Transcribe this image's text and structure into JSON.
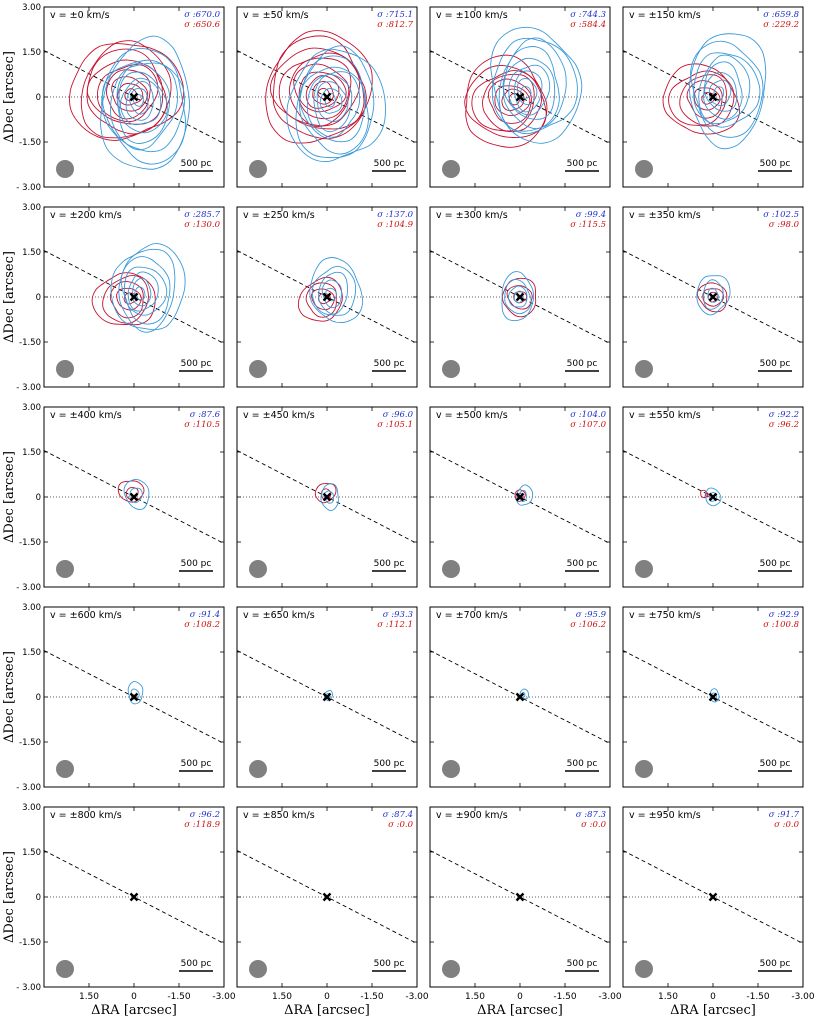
{
  "figure": {
    "xlabel": "ΔRA [arcsec]",
    "ylabel": "ΔDec [arcsec]",
    "scalebar_label": "500 pc",
    "sigma_prefix": "σ :",
    "velocity_prefix": "v = ±",
    "velocity_unit": " km/s",
    "colors": {
      "blue": "#3a9ad9",
      "red": "#c8102e",
      "beam": "#808080"
    }
  },
  "chart_data": {
    "type": "contour-grid",
    "rows": 5,
    "cols": 4,
    "x_ticks": [
      "1.50",
      "0",
      "-1.50",
      "-3.00"
    ],
    "x_tick_values": [
      1.5,
      0,
      -1.5,
      -3.0
    ],
    "y_ticks": [
      "3.00",
      "1.50",
      "0",
      "-1.50",
      "- 3.00"
    ],
    "y_tick_values": [
      3.0,
      1.5,
      0,
      -1.5,
      -3.0
    ],
    "xlim": [
      3.0,
      -3.0
    ],
    "ylim": [
      -3.0,
      3.0
    ],
    "panels": [
      {
        "velocity": 0,
        "sigma_blue": "670.0",
        "sigma_red": "650.6",
        "blue_size": 3.0,
        "red_size": 2.9,
        "blue_dx": -0.4,
        "blue_dy": -0.3,
        "red_dx": 0.3,
        "red_dy": 0.2
      },
      {
        "velocity": 50,
        "sigma_blue": "715.1",
        "sigma_red": "812.7",
        "blue_size": 2.9,
        "red_size": 3.0,
        "blue_dx": -0.3,
        "blue_dy": -0.3,
        "red_dx": 0.3,
        "red_dy": 0.3
      },
      {
        "velocity": 100,
        "sigma_blue": "744.3",
        "sigma_red": "584.4",
        "blue_size": 2.8,
        "red_size": 2.4,
        "blue_dx": -0.5,
        "blue_dy": 0.4,
        "red_dx": 0.5,
        "red_dy": -0.2
      },
      {
        "velocity": 150,
        "sigma_blue": "659.8",
        "sigma_red": "229.2",
        "blue_size": 2.6,
        "red_size": 2.0,
        "blue_dx": -0.5,
        "blue_dy": 0.3,
        "red_dx": 0.4,
        "red_dy": -0.1
      },
      {
        "velocity": 200,
        "sigma_blue": "285.7",
        "sigma_red": "130.0",
        "blue_size": 2.2,
        "red_size": 1.6,
        "blue_dx": -0.5,
        "blue_dy": 0.3,
        "red_dx": 0.3,
        "red_dy": -0.1
      },
      {
        "velocity": 250,
        "sigma_blue": "137.0",
        "sigma_red": "104.9",
        "blue_size": 1.6,
        "red_size": 1.2,
        "blue_dx": -0.3,
        "blue_dy": 0.2,
        "red_dx": 0.2,
        "red_dy": -0.1
      },
      {
        "velocity": 300,
        "sigma_blue": "99.4",
        "sigma_red": "115.5",
        "blue_size": 1.1,
        "red_size": 1.0,
        "blue_dx": 0.1,
        "blue_dy": 0.0,
        "red_dx": 0.0,
        "red_dy": 0.0
      },
      {
        "velocity": 350,
        "sigma_blue": "102.5",
        "sigma_red": "98.0",
        "blue_size": 1.0,
        "red_size": 0.8,
        "blue_dx": 0.0,
        "blue_dy": 0.1,
        "red_dx": 0.0,
        "red_dy": 0.0
      },
      {
        "velocity": 400,
        "sigma_blue": "87.6",
        "sigma_red": "110.5",
        "blue_size": 0.75,
        "red_size": 0.65,
        "blue_dx": -0.1,
        "blue_dy": 0.1,
        "red_dx": 0.1,
        "red_dy": 0.2
      },
      {
        "velocity": 450,
        "sigma_blue": "96.0",
        "sigma_red": "105.1",
        "blue_size": 0.6,
        "red_size": 0.55,
        "blue_dx": -0.1,
        "blue_dy": 0.0,
        "red_dx": 0.05,
        "red_dy": 0.15
      },
      {
        "velocity": 500,
        "sigma_blue": "104.0",
        "sigma_red": "107.0",
        "blue_size": 0.5,
        "red_size": 0.3,
        "blue_dx": -0.15,
        "blue_dy": 0.05,
        "red_dx": 0.0,
        "red_dy": 0.05
      },
      {
        "velocity": 550,
        "sigma_blue": "92.2",
        "sigma_red": "96.2",
        "blue_size": 0.45,
        "red_size": 0.2,
        "blue_dx": 0.0,
        "blue_dy": 0.0,
        "red_dx": 0.3,
        "red_dy": 0.1
      },
      {
        "velocity": 600,
        "sigma_blue": "91.4",
        "sigma_red": "108.2",
        "blue_size": 0.5,
        "red_size": 0.12,
        "blue_dx": -0.05,
        "blue_dy": 0.15,
        "red_dx": 0.0,
        "red_dy": 0.0
      },
      {
        "velocity": 650,
        "sigma_blue": "93.3",
        "sigma_red": "112.1",
        "blue_size": 0.25,
        "red_size": 0.0,
        "blue_dx": -0.05,
        "blue_dy": 0.05,
        "red_dx": 0.0,
        "red_dy": 0.0
      },
      {
        "velocity": 700,
        "sigma_blue": "95.9",
        "sigma_red": "106.2",
        "blue_size": 0.25,
        "red_size": 0.0,
        "blue_dx": -0.15,
        "blue_dy": 0.1,
        "red_dx": 0.0,
        "red_dy": 0.0
      },
      {
        "velocity": 750,
        "sigma_blue": "92.9",
        "sigma_red": "100.8",
        "blue_size": 0.3,
        "red_size": 0.0,
        "blue_dx": -0.05,
        "blue_dy": 0.05,
        "red_dx": 0.0,
        "red_dy": 0.0
      },
      {
        "velocity": 800,
        "sigma_blue": "96.2",
        "sigma_red": "118.9",
        "blue_size": 0.0,
        "red_size": 0.0,
        "blue_dx": 0.0,
        "blue_dy": 0.0,
        "red_dx": 0.0,
        "red_dy": 0.0
      },
      {
        "velocity": 850,
        "sigma_blue": "87.4",
        "sigma_red": "0.0",
        "blue_size": 0.0,
        "red_size": 0.0,
        "blue_dx": 0.0,
        "blue_dy": 0.0,
        "red_dx": 0.0,
        "red_dy": 0.0
      },
      {
        "velocity": 900,
        "sigma_blue": "87.3",
        "sigma_red": "0.0",
        "blue_size": 0.0,
        "red_size": 0.0,
        "blue_dx": 0.0,
        "blue_dy": 0.0,
        "red_dx": 0.0,
        "red_dy": 0.0
      },
      {
        "velocity": 950,
        "sigma_blue": "91.7",
        "sigma_red": "0.0",
        "blue_size": 0.0,
        "red_size": 0.0,
        "blue_dx": 0.0,
        "blue_dy": 0.0,
        "red_dx": 0.0,
        "red_dy": 0.0
      }
    ],
    "reference_line": {
      "description": "dashed major axis",
      "x": [
        3.0,
        -3.0
      ],
      "y": [
        1.55,
        -1.55
      ]
    },
    "zero_line": {
      "description": "dotted y=0",
      "y": 0
    },
    "center_marker": {
      "x": 0,
      "y": 0,
      "symbol": "x"
    }
  }
}
